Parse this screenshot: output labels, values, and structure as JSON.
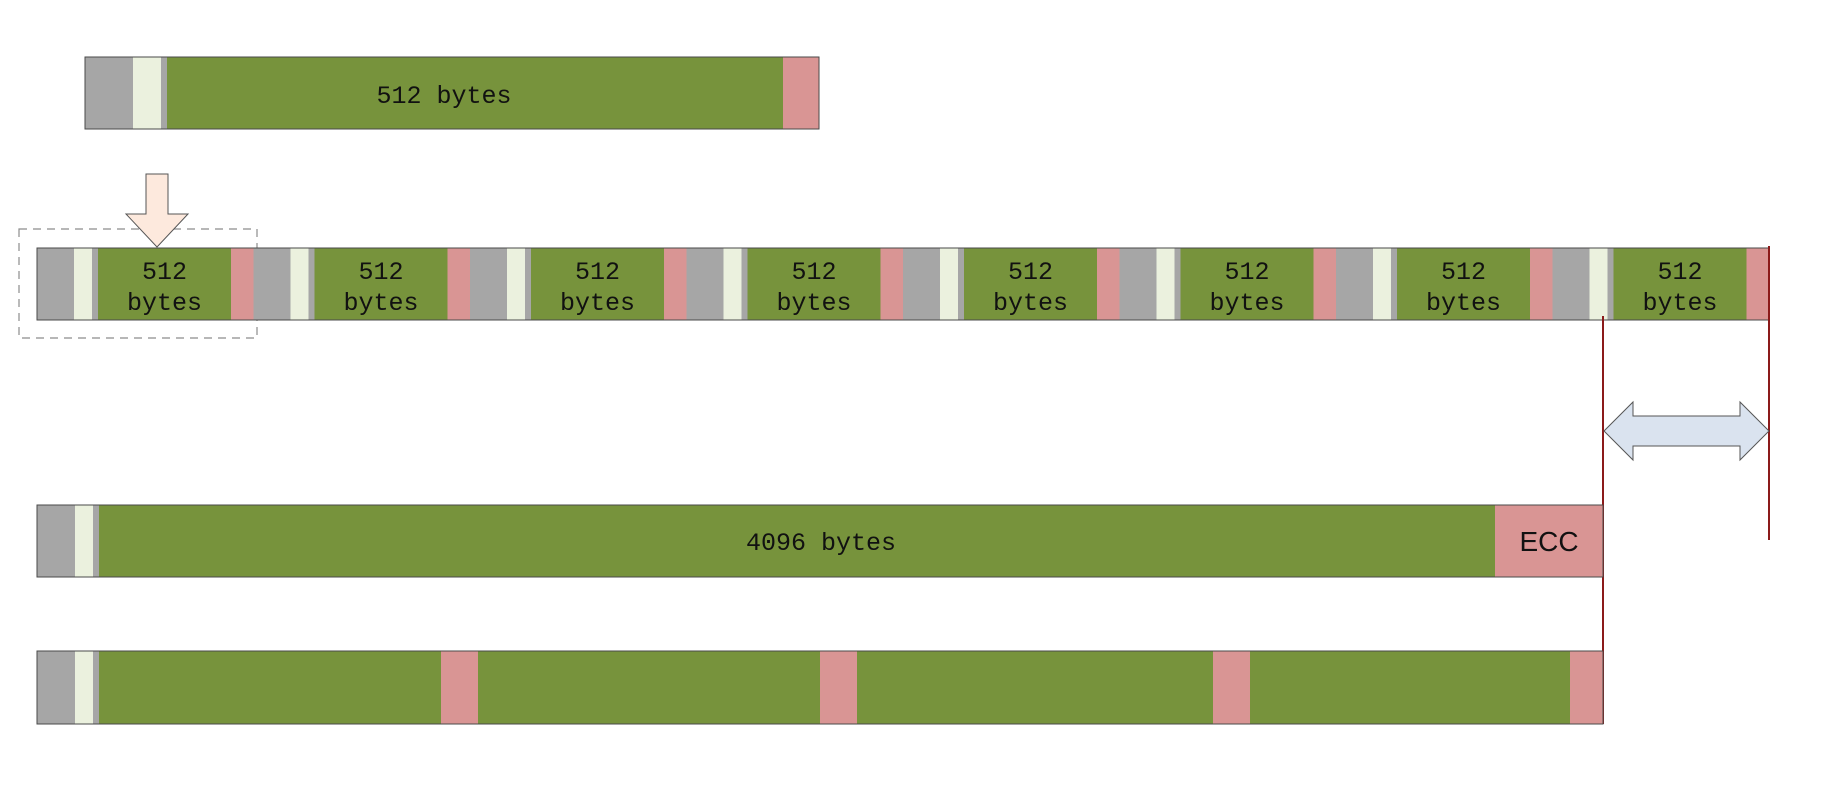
{
  "colors": {
    "header_gray": "#a6a6a6",
    "marker_light": "#ebf1de",
    "data_green": "#77933c",
    "ecc_pink": "#d99594",
    "outline": "#4a4a4a",
    "divider_red": "#8b1a1a",
    "down_arrow_fill": "#fde9dd",
    "double_arrow_fill": "#dae3ef",
    "dashed_box": "#8c8c8c"
  },
  "single_sector": {
    "label": "512 bytes"
  },
  "sector_row": {
    "sectors": [
      {
        "label_line1": "512",
        "label_line2": "bytes"
      },
      {
        "label_line1": "512",
        "label_line2": "bytes"
      },
      {
        "label_line1": "512",
        "label_line2": "bytes"
      },
      {
        "label_line1": "512",
        "label_line2": "bytes"
      },
      {
        "label_line1": "512",
        "label_line2": "bytes"
      },
      {
        "label_line1": "512",
        "label_line2": "bytes"
      },
      {
        "label_line1": "512",
        "label_line2": "bytes"
      },
      {
        "label_line1": "512",
        "label_line2": "bytes"
      }
    ]
  },
  "large_sector": {
    "data_label": "4096 bytes",
    "ecc_label": "ECC"
  },
  "split_sector": {
    "segments": 4
  },
  "icons": {
    "down_arrow": "down-arrow-icon",
    "double_arrow": "double-arrow-icon"
  }
}
